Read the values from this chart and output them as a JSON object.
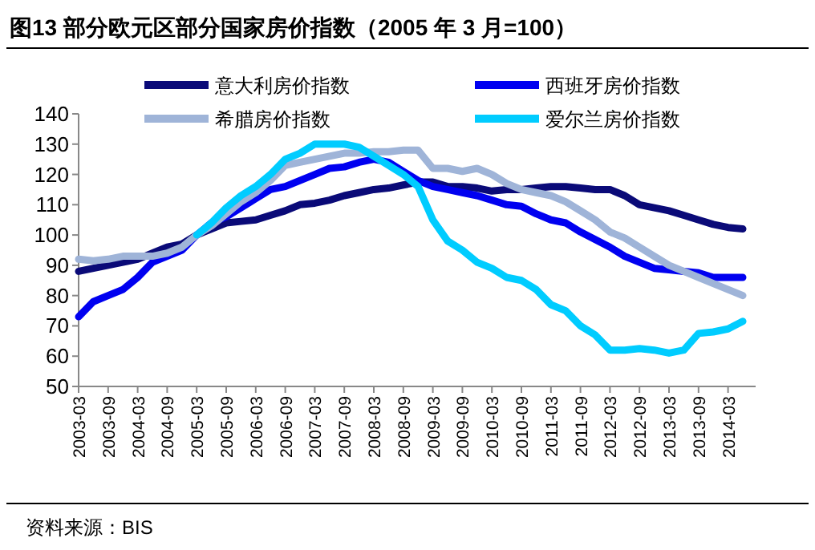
{
  "chart_data": {
    "type": "line",
    "title": "图13 部分欧元区部分国家房价指数（2005 年 3 月=100）",
    "categories": [
      "2003-03",
      null,
      "2003-09",
      null,
      "2004-03",
      null,
      "2004-09",
      null,
      "2005-03",
      null,
      "2005-09",
      null,
      "2006-03",
      null,
      "2006-09",
      null,
      "2007-03",
      null,
      "2007-09",
      null,
      "2008-03",
      null,
      "2008-09",
      null,
      "2009-03",
      null,
      "2009-09",
      null,
      "2010-03",
      null,
      "2010-09",
      null,
      "2011-03",
      null,
      "2011-09",
      null,
      "2012-03",
      null,
      "2012-09",
      null,
      "2013-03",
      null,
      "2013-09",
      null,
      "2014-03",
      null
    ],
    "series": [
      {
        "name": "意大利房价指数",
        "color": "#0a0a78",
        "values": [
          88,
          89,
          90,
          91,
          92,
          94,
          96,
          97,
          100,
          102,
          104,
          104.5,
          105,
          106.5,
          108,
          110,
          110.5,
          111.5,
          113,
          114,
          115,
          115.5,
          116.5,
          117.5,
          117.5,
          116,
          116,
          115.5,
          114.5,
          115,
          115,
          115.5,
          116,
          116,
          115.5,
          115,
          115,
          113,
          110,
          109,
          108,
          106.5,
          105,
          103.5,
          102.5,
          102
        ]
      },
      {
        "name": "西班牙房价指数",
        "color": "#0000f0",
        "values": [
          73,
          78,
          80,
          82,
          86,
          91,
          93,
          95,
          100,
          104,
          106,
          109,
          112,
          115,
          116,
          118,
          120,
          122,
          122.5,
          124,
          125,
          124,
          121,
          118,
          116,
          115,
          114,
          113,
          111.5,
          110,
          109.5,
          107,
          105,
          104,
          101,
          98.5,
          96,
          93,
          91,
          89,
          88.5,
          88,
          87.5,
          86,
          86,
          86
        ]
      },
      {
        "name": "希腊房价指数",
        "color": "#9fb4d8",
        "values": [
          92,
          91.5,
          92,
          93,
          93,
          93,
          94,
          96,
          100,
          103,
          107,
          111,
          114,
          118,
          123,
          124,
          125,
          126,
          127,
          127,
          127.5,
          127.5,
          128,
          128,
          122,
          122,
          121,
          122,
          120,
          117,
          115,
          114,
          113,
          111,
          108,
          105,
          101,
          99,
          96,
          93,
          90,
          88,
          86,
          84,
          82,
          80
        ]
      },
      {
        "name": "爱尔兰房价指数",
        "color": "#00ccff",
        "values": [
          null,
          null,
          null,
          null,
          null,
          null,
          null,
          null,
          100,
          104,
          109,
          113,
          116,
          120,
          125,
          127,
          130,
          130,
          130,
          129,
          126,
          123,
          120,
          116,
          105,
          98,
          95,
          91,
          89,
          86,
          85,
          82,
          77,
          75,
          70,
          67,
          62,
          62,
          62.5,
          62,
          61,
          62,
          67.5,
          68,
          69,
          71.5
        ]
      }
    ],
    "ylim": [
      50,
      140
    ],
    "yticks": [
      50,
      60,
      70,
      80,
      90,
      100,
      110,
      120,
      130,
      140
    ],
    "legend": "top",
    "annotations": [
      "资料来源：BIS"
    ]
  }
}
